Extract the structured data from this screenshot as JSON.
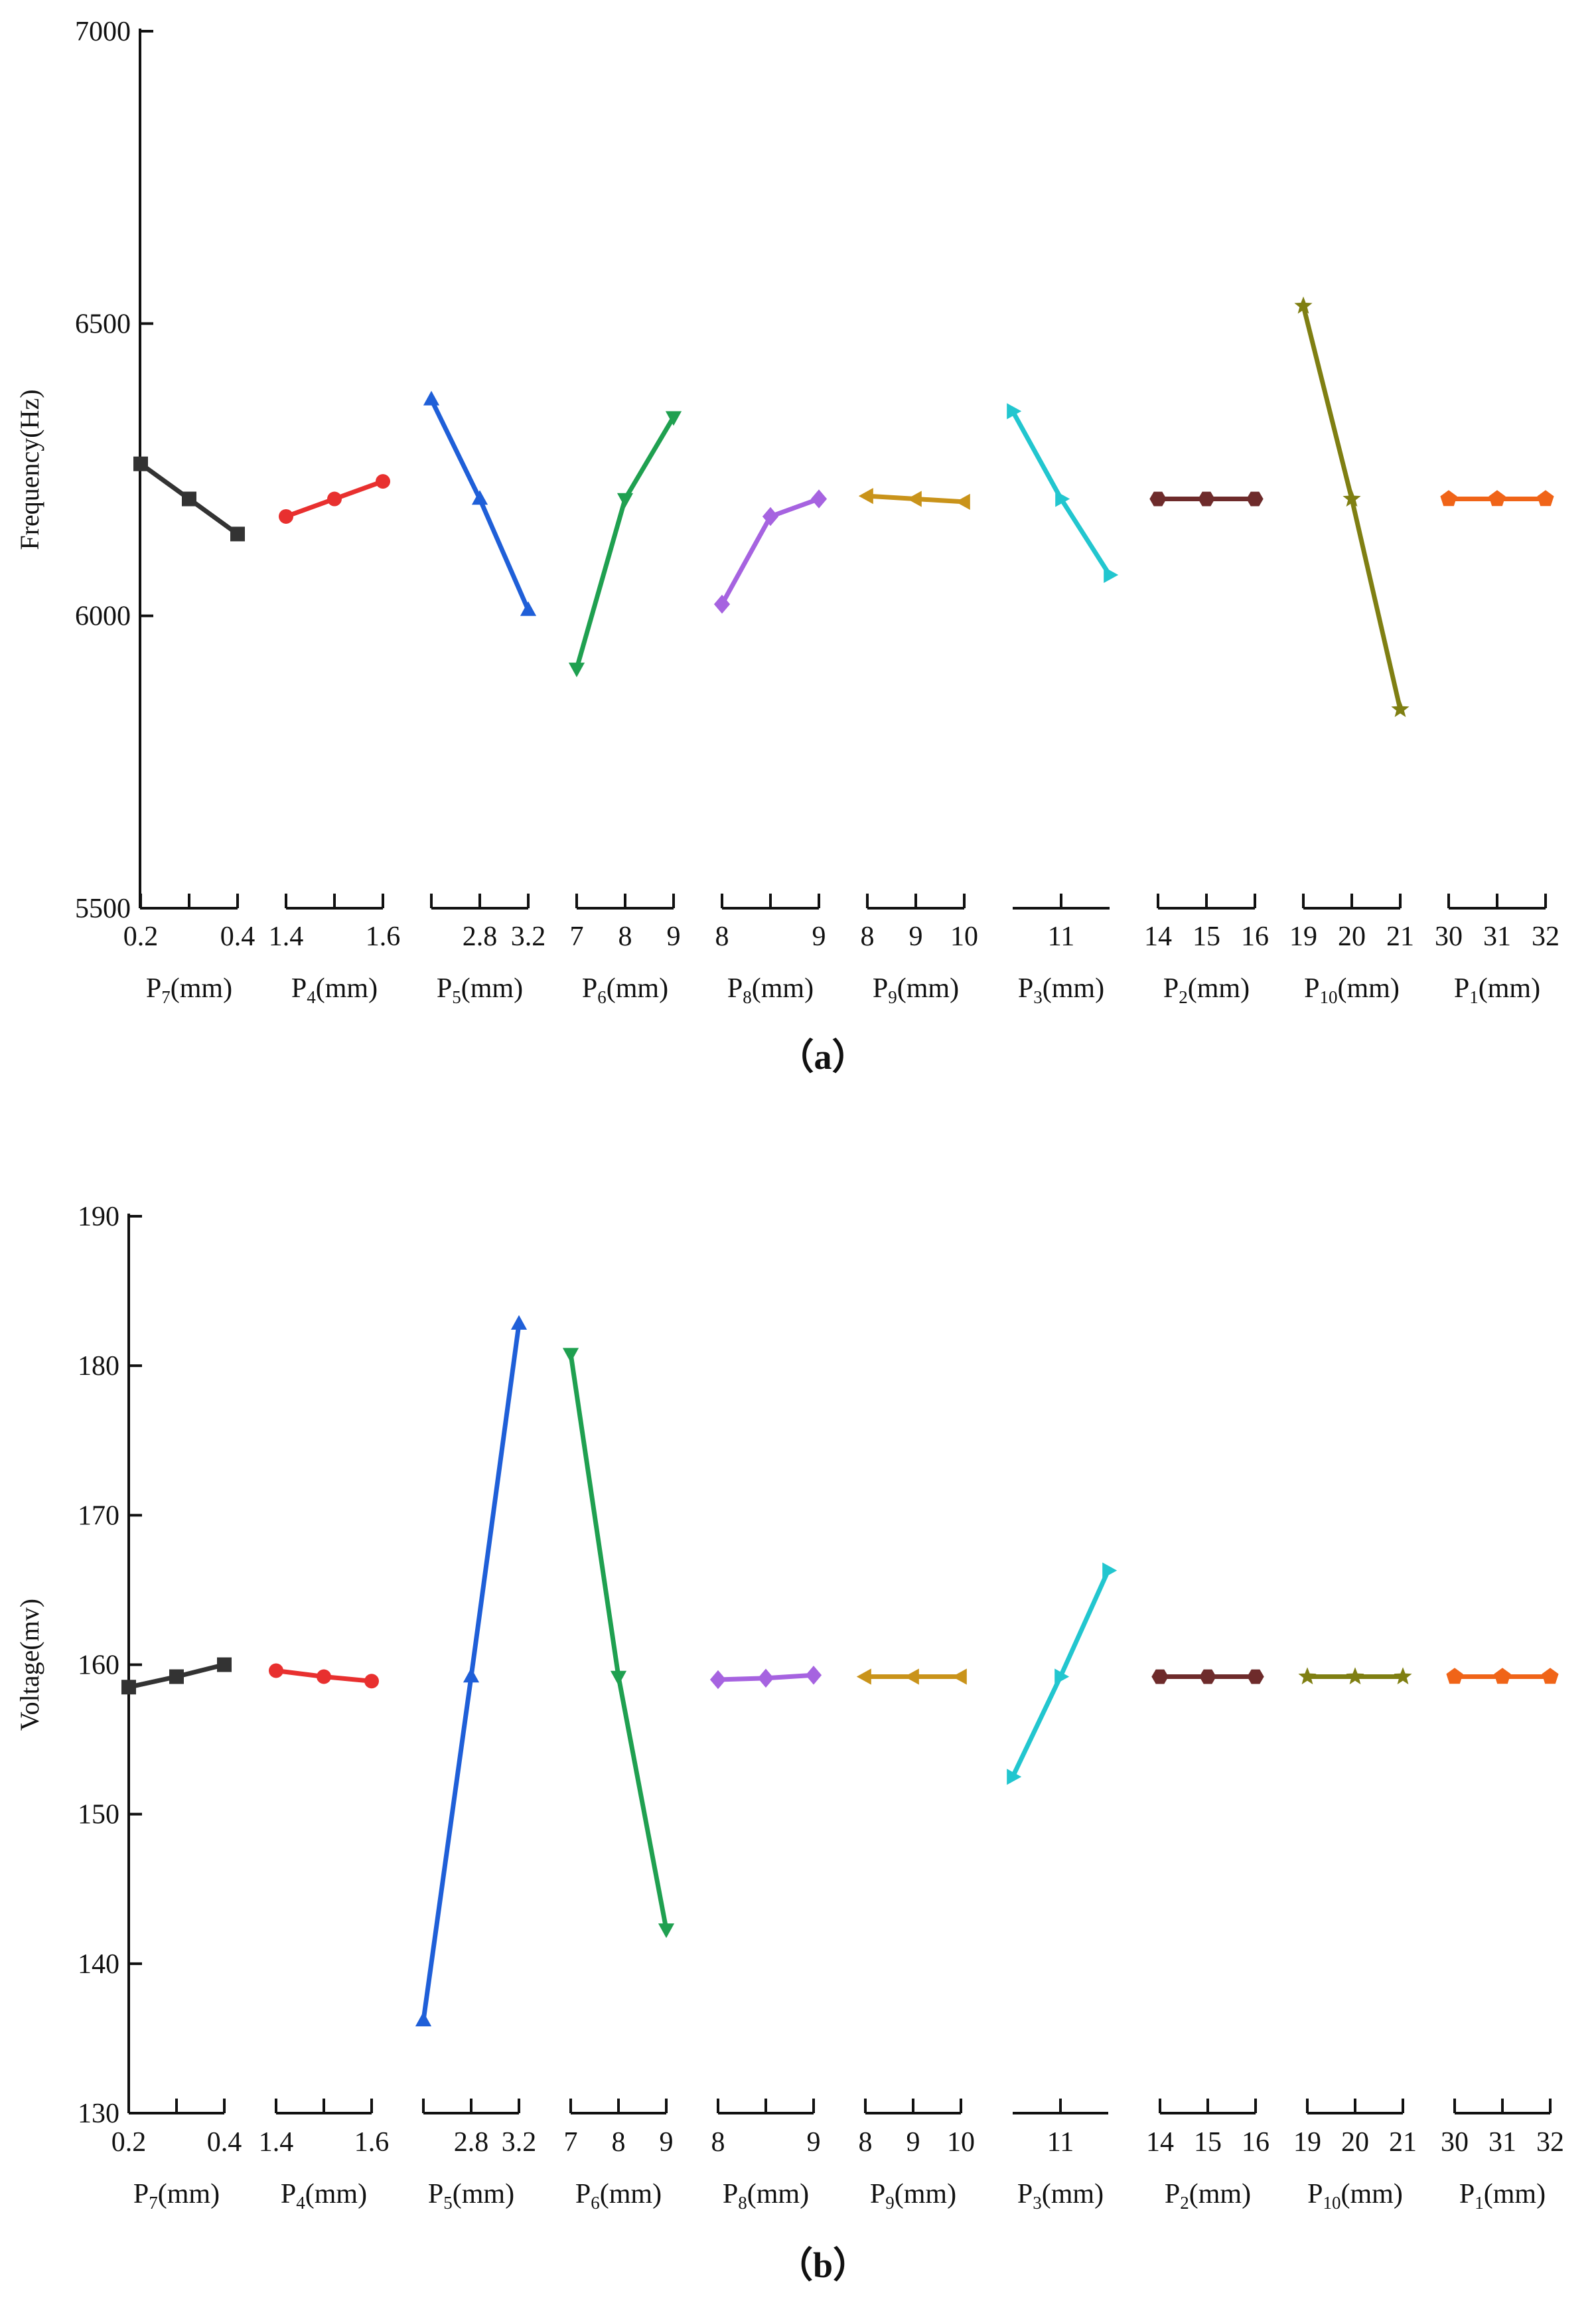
{
  "chart_data": [
    {
      "type": "line",
      "title": "",
      "panel_label": "（a）",
      "ylabel": "Frequency(Hz)",
      "ylim": [
        5500,
        7000
      ],
      "yticks": [
        5500,
        6000,
        6500,
        7000
      ],
      "groups": [
        {
          "name": "P7(mm)",
          "color": "#333333",
          "marker": "square",
          "tick_labels": [
            "0.2",
            "0.4"
          ],
          "tick_positions": [
            0,
            2
          ],
          "x": [
            0,
            1,
            2
          ],
          "values": [
            6260,
            6200,
            6140
          ]
        },
        {
          "name": "P4(mm)",
          "color": "#e8302f",
          "marker": "circle",
          "tick_labels": [
            "1.4",
            "1.6"
          ],
          "tick_positions": [
            0,
            2
          ],
          "x": [
            0,
            1,
            2
          ],
          "values": [
            6170,
            6200,
            6230
          ]
        },
        {
          "name": "P5(mm)",
          "color": "#1f5fd8",
          "marker": "triangle-up",
          "tick_labels": [
            "2.8",
            "3.2"
          ],
          "tick_positions": [
            1,
            2
          ],
          "x": [
            0,
            1,
            2
          ],
          "values": [
            6370,
            6200,
            6010
          ]
        },
        {
          "name": "P6(mm)",
          "color": "#1fa050",
          "marker": "triangle-down",
          "tick_labels": [
            "7",
            "8",
            "9"
          ],
          "tick_positions": [
            0,
            1,
            2
          ],
          "x": [
            0,
            1,
            2
          ],
          "values": [
            5910,
            6200,
            6340
          ]
        },
        {
          "name": "P8(mm)",
          "color": "#a663e0",
          "marker": "diamond",
          "tick_labels": [
            "8",
            "9"
          ],
          "tick_positions": [
            0,
            2
          ],
          "x": [
            0,
            1,
            2
          ],
          "values": [
            6020,
            6170,
            6200
          ]
        },
        {
          "name": "P9(mm)",
          "color": "#c9931a",
          "marker": "triangle-left",
          "tick_labels": [
            "8",
            "9",
            "10"
          ],
          "tick_positions": [
            0,
            1,
            2
          ],
          "x": [
            0,
            1,
            2
          ],
          "values": [
            6205,
            6200,
            6195
          ]
        },
        {
          "name": "P3(mm)",
          "color": "#22c6cf",
          "marker": "triangle-right",
          "tick_labels": [
            "11"
          ],
          "tick_positions": [
            1
          ],
          "x": [
            0,
            1,
            2
          ],
          "values": [
            6350,
            6200,
            6070
          ]
        },
        {
          "name": "P2(mm)",
          "color": "#6e2b2b",
          "marker": "hexagon",
          "tick_labels": [
            "14",
            "15",
            "16"
          ],
          "tick_positions": [
            0,
            1,
            2
          ],
          "x": [
            0,
            1,
            2
          ],
          "values": [
            6200,
            6200,
            6200
          ]
        },
        {
          "name": "P10(mm)",
          "color": "#7f7f12",
          "marker": "star",
          "tick_labels": [
            "19",
            "20",
            "21"
          ],
          "tick_positions": [
            0,
            1,
            2
          ],
          "x": [
            0,
            1,
            2
          ],
          "values": [
            6530,
            6200,
            5840
          ]
        },
        {
          "name": "P1(mm)",
          "color": "#f06418",
          "marker": "pentagon",
          "tick_labels": [
            "30",
            "31",
            "32"
          ],
          "tick_positions": [
            0,
            1,
            2
          ],
          "x": [
            0,
            1,
            2
          ],
          "values": [
            6200,
            6200,
            6200
          ]
        }
      ]
    },
    {
      "type": "line",
      "title": "",
      "panel_label": "（b）",
      "ylabel": "Voltage(mv)",
      "ylim": [
        130,
        190
      ],
      "yticks": [
        130,
        140,
        150,
        160,
        170,
        180,
        190
      ],
      "groups": [
        {
          "name": "P7(mm)",
          "color": "#333333",
          "marker": "square",
          "tick_labels": [
            "0.2",
            "0.4"
          ],
          "tick_positions": [
            0,
            2
          ],
          "x": [
            0,
            1,
            2
          ],
          "values": [
            158.5,
            159.2,
            160.0
          ]
        },
        {
          "name": "P4(mm)",
          "color": "#e8302f",
          "marker": "circle",
          "tick_labels": [
            "1.4",
            "1.6"
          ],
          "tick_positions": [
            0,
            2
          ],
          "x": [
            0,
            1,
            2
          ],
          "values": [
            159.6,
            159.2,
            158.9
          ]
        },
        {
          "name": "P5(mm)",
          "color": "#1f5fd8",
          "marker": "triangle-up",
          "tick_labels": [
            "2.8",
            "3.2"
          ],
          "tick_positions": [
            1,
            2
          ],
          "x": [
            0,
            1,
            2
          ],
          "values": [
            136.2,
            159.2,
            182.8
          ]
        },
        {
          "name": "P6(mm)",
          "color": "#1fa050",
          "marker": "triangle-down",
          "tick_labels": [
            "7",
            "8",
            "9"
          ],
          "tick_positions": [
            0,
            1,
            2
          ],
          "x": [
            0,
            1,
            2
          ],
          "values": [
            180.8,
            159.2,
            142.3
          ]
        },
        {
          "name": "P8(mm)",
          "color": "#a663e0",
          "marker": "diamond",
          "tick_labels": [
            "8",
            "9"
          ],
          "tick_positions": [
            0,
            2
          ],
          "x": [
            0,
            1,
            2
          ],
          "values": [
            159.0,
            159.1,
            159.3
          ]
        },
        {
          "name": "P9(mm)",
          "color": "#c9931a",
          "marker": "triangle-left",
          "tick_labels": [
            "8",
            "9",
            "10"
          ],
          "tick_positions": [
            0,
            1,
            2
          ],
          "x": [
            0,
            1,
            2
          ],
          "values": [
            159.2,
            159.2,
            159.2
          ]
        },
        {
          "name": "P3(mm)",
          "color": "#22c6cf",
          "marker": "triangle-right",
          "tick_labels": [
            "11"
          ],
          "tick_positions": [
            1
          ],
          "x": [
            0,
            1,
            2
          ],
          "values": [
            152.5,
            159.2,
            166.3
          ]
        },
        {
          "name": "P2(mm)",
          "color": "#6e2b2b",
          "marker": "hexagon",
          "tick_labels": [
            "14",
            "15",
            "16"
          ],
          "tick_positions": [
            0,
            1,
            2
          ],
          "x": [
            0,
            1,
            2
          ],
          "values": [
            159.2,
            159.2,
            159.2
          ]
        },
        {
          "name": "P10(mm)",
          "color": "#7f7f12",
          "marker": "star",
          "tick_labels": [
            "19",
            "20",
            "21"
          ],
          "tick_positions": [
            0,
            1,
            2
          ],
          "x": [
            0,
            1,
            2
          ],
          "values": [
            159.2,
            159.2,
            159.2
          ]
        },
        {
          "name": "P1(mm)",
          "color": "#f06418",
          "marker": "pentagon",
          "tick_labels": [
            "30",
            "31",
            "32"
          ],
          "tick_positions": [
            0,
            1,
            2
          ],
          "x": [
            0,
            1,
            2
          ],
          "values": [
            159.2,
            159.2,
            159.2
          ]
        }
      ]
    }
  ]
}
